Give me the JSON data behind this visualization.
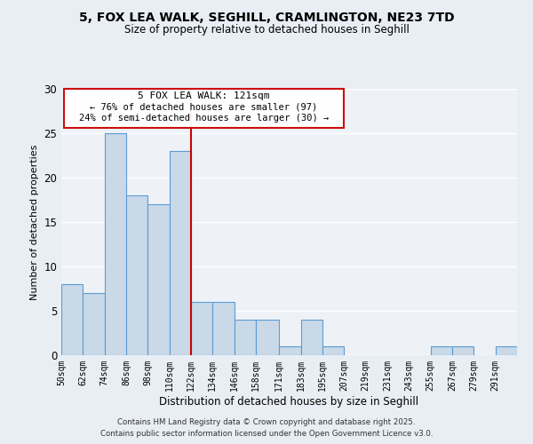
{
  "title_line1": "5, FOX LEA WALK, SEGHILL, CRAMLINGTON, NE23 7TD",
  "title_line2": "Size of property relative to detached houses in Seghill",
  "xlabel": "Distribution of detached houses by size in Seghill",
  "ylabel": "Number of detached properties",
  "bar_labels": [
    "50sqm",
    "62sqm",
    "74sqm",
    "86sqm",
    "98sqm",
    "110sqm",
    "122sqm",
    "134sqm",
    "146sqm",
    "158sqm",
    "171sqm",
    "183sqm",
    "195sqm",
    "207sqm",
    "219sqm",
    "231sqm",
    "243sqm",
    "255sqm",
    "267sqm",
    "279sqm",
    "291sqm"
  ],
  "bar_values": [
    8,
    7,
    25,
    18,
    17,
    23,
    6,
    6,
    4,
    4,
    1,
    4,
    1,
    0,
    0,
    0,
    0,
    1,
    1,
    0,
    1
  ],
  "bar_color": "#c9d9e8",
  "bar_edge_color": "#5b9bd5",
  "background_color": "#e8eef4",
  "plot_bg_color": "#eef2f7",
  "grid_color": "#ffffff",
  "annotation_box_color": "#cc0000",
  "annotation_line_color": "#cc0000",
  "annotation_text_line1": "5 FOX LEA WALK: 121sqm",
  "annotation_text_line2": "← 76% of detached houses are smaller (97)",
  "annotation_text_line3": "24% of semi-detached houses are larger (30) →",
  "ylim": [
    0,
    30
  ],
  "yticks": [
    0,
    5,
    10,
    15,
    20,
    25,
    30
  ],
  "footer_line1": "Contains HM Land Registry data © Crown copyright and database right 2025.",
  "footer_line2": "Contains public sector information licensed under the Open Government Licence v3.0.",
  "bin_edges": [
    50,
    62,
    74,
    86,
    98,
    110,
    122,
    134,
    146,
    158,
    171,
    183,
    195,
    207,
    219,
    231,
    243,
    255,
    267,
    279,
    291,
    303
  ]
}
